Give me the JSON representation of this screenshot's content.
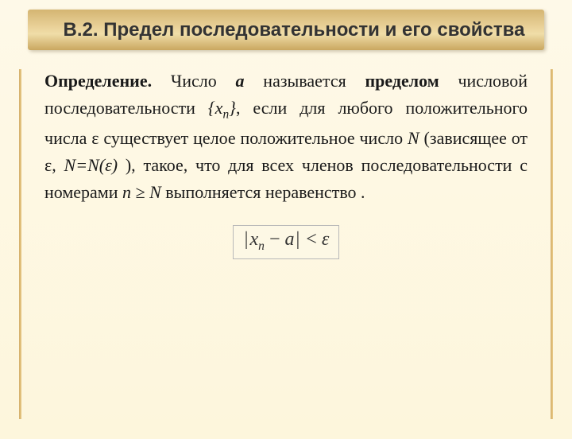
{
  "header": {
    "title": "В.2. Предел последовательности и его свойства"
  },
  "definition": {
    "label": "Определение.",
    "text_parts": {
      "p1": "Число",
      "var_a": "a",
      "p2": "называется",
      "bold_limit": "пределом",
      "p3": "числовой последовательности",
      "seq_open": "{",
      "seq_x": "x",
      "seq_sub": "n",
      "seq_close": "}",
      "p4": ", если для любого положительного числа",
      "eps1": "ε",
      "p5": "существует целое положительное число",
      "var_N1": "N",
      "p6": "(зависящее от",
      "eps2": "ε",
      "comma1": ",",
      "neq": "N=N(ε)",
      "p7": "), такое, что для всех членов последовательности с номерами",
      "var_n": "n",
      "geq": "≥",
      "var_N2": "N",
      "p8": "выполняется неравенство ."
    }
  },
  "formula": {
    "abs1": "|",
    "x": "x",
    "sub_n": "n",
    "minus": " − ",
    "a": "a",
    "abs2": "|",
    "lt": " < ",
    "eps": "ε"
  },
  "colors": {
    "background_top": "#fef9e8",
    "background_bottom": "#fdf6dc",
    "header_gradient_top": "#d4b572",
    "header_gradient_bottom": "#c9a760",
    "border_color": "#d4af6a",
    "text_color": "#1a1a1a",
    "formula_border": "#b8b8b8"
  }
}
